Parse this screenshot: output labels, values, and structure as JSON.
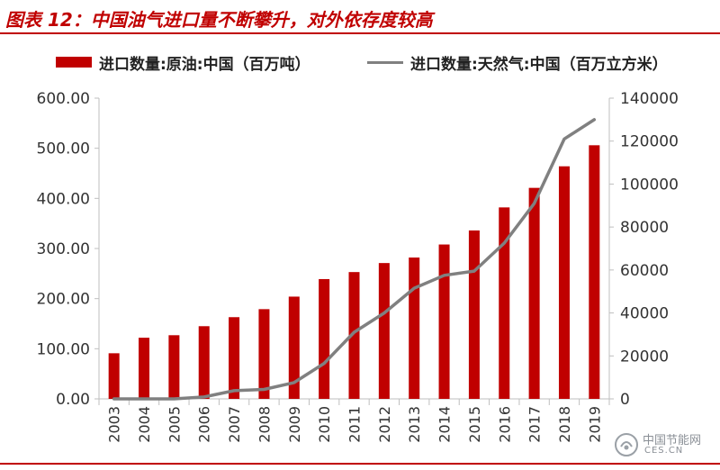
{
  "figure": {
    "title": "图表 12：中国油气进口量不断攀升，对外依存度较高"
  },
  "watermark": {
    "line1": "中国节能网",
    "line2": "CES.CN"
  },
  "colors": {
    "accent": "#c00000",
    "bar": "#c00000",
    "line": "#808080"
  },
  "chart_data": {
    "type": "bar",
    "categories": [
      "2003",
      "2004",
      "2005",
      "2006",
      "2007",
      "2008",
      "2009",
      "2010",
      "2011",
      "2012",
      "2013",
      "2014",
      "2015",
      "2016",
      "2017",
      "2018",
      "2019"
    ],
    "series": [
      {
        "name": "进口数量:原油:中国（百万吨）",
        "type": "bar",
        "axis": "left",
        "values": [
          91,
          122,
          127,
          145,
          163,
          179,
          204,
          239,
          253,
          271,
          282,
          308,
          336,
          382,
          421,
          464,
          506
        ]
      },
      {
        "name": "进口数量:天然气:中国（百万立方米）",
        "type": "line",
        "axis": "right",
        "values": [
          0,
          0,
          0,
          900,
          3800,
          4400,
          7600,
          16500,
          31000,
          40000,
          51500,
          57500,
          59500,
          72500,
          91000,
          121000,
          130000
        ]
      }
    ],
    "legend_position": "top",
    "y_left": {
      "ylim": [
        0,
        600
      ],
      "ticks": [
        "0.00",
        "100.00",
        "200.00",
        "300.00",
        "400.00",
        "500.00",
        "600.00"
      ]
    },
    "y_right": {
      "ylim": [
        0,
        140000
      ],
      "ticks": [
        "0",
        "20000",
        "40000",
        "60000",
        "80000",
        "100000",
        "120000",
        "140000"
      ]
    },
    "grid": false,
    "xlabel": "",
    "ylabel": ""
  }
}
